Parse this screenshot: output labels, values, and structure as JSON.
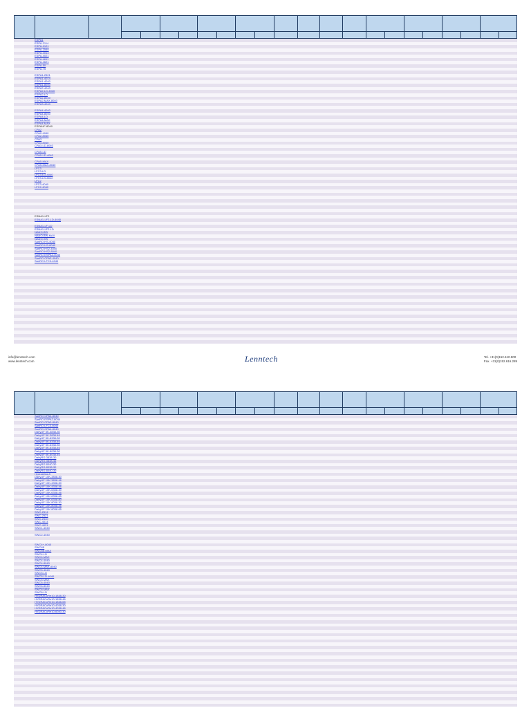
{
  "footer": {
    "email": "info@lenntech.com",
    "web": "www.lenntech.com",
    "logo": "Lenntech",
    "tel": "Tel. +31(0)152.610.900",
    "fax": "Fax. +31(0)152.616.289"
  },
  "page1_rows": [
    "ESPA1",
    "ESPA-2114",
    "ESPA-2121",
    "ESPA-2540",
    "ESPA-4014",
    "ESPA-4021",
    "ESPA-4611",
    "ESPA-4621",
    "ESPA-50",
    "ESPA-75",
    "",
    "ESPA1-2521",
    "ESPA1-4014",
    "ESPA1-4040",
    "ESPA1-8040",
    "ESPA2-4040",
    "ESPA2-LD-4040",
    "ESPA2-LD",
    "ESPA2-8040",
    "ESPA2-MAX-8040",
    "ESPA3-4040",
    "",
    "ESPA4-4040",
    "ESPA4-8040",
    "ESPA4-LD",
    "ESPA4-MAX",
    "ESPA4-MAX",
    "ESPAUF-8040",
    "CPA2",
    "CPA2-4040",
    "CPA2-8040",
    "CPA3",
    "CPA3-8040",
    "CPA3-LD-8040",
    "",
    "CPA5-LD",
    "CPA5-LD-4040",
    "",
    "CPA5-MAX",
    "CPA5-MAX-8040",
    "LFC3",
    "LFC3-LD",
    "LFC3-LD-4040",
    "LFC3-LD-8040",
    "LFC2",
    "LFC3-4040",
    "LFC2-4040",
    "",
    "",
    "",
    "",
    "",
    "",
    "",
    "",
    "ESNA1-LF2",
    "ESNA1-LF2-LD-4040",
    "",
    "ESNA1-LF-LD",
    "ESNA1-LF2-LD",
    "NANO-BW",
    "NANO-BW-MAX",
    "NANO-SW",
    "SanRO HS-4040",
    "SanRO HS-8040",
    "SanRO HS2-4040",
    "SanRO HS2-8040",
    "SanRO ESPA2-4040",
    "SanRO CPA3-4040",
    "SanRO LFC3-4040"
  ],
  "page1_plain": [
    "ESNA1-LF2",
    "ESPAUF-8040"
  ],
  "page2_rows": [
    "SanRO CPA4-8040",
    "SanRO ESPA2-8040",
    "SanRO CPA3-8040",
    "SanRO LFC3-8040",
    "SanRO CPA4-8040",
    "DairyUF 5K-3838-30",
    "DairyUF 5K-3838-46",
    "DairyUF 5K-6338-30",
    "DairyUF 5K-6338-46",
    "DairyUF 5K-6338-30",
    "DairyUF 5K-6338-46",
    "DairyUF 5K-8038-30",
    "DairyUF 5K-8038-46",
    "DairyRO-3838-30",
    "DairyRO-3838-46",
    "DairyRO-8040-30",
    "DairyRO-8038-30",
    "DairyRO-8040-30",
    "HydraUltra-8",
    "DairyUF 10K-3838-30",
    "DairyUF 10K-3838-46",
    "DairyUF 10K-4338-30",
    "DairyUF 10K-4338-46",
    "DairyUF 10K-6338-30",
    "DairyUF 10K-6338-46",
    "DairyUF 10K-6338-65",
    "DairyUF 10K-6338-80",
    "DairyUF 10K-8038-30",
    "DairyUF 10K-8038-46",
    "DairyUF 10K-8038-65",
    "SWC-2514",
    "SWC-2521",
    "SWC-2540",
    "SWC-4014",
    "SWC-4021",
    "SWC1-4040",
    "",
    "SWC2-4040",
    "",
    "",
    "SWC4+-8040",
    "SWC4B",
    "SWC4B-MAX",
    "SWC4-LD",
    "SWC4-MAX",
    "SWC4-4040",
    "SWC4-8040",
    "SWC4-MAX-8040",
    "SWC5-4040",
    "SWC5-LD",
    "SWC5-LD-4040",
    "SWC5-MAX",
    "SWC6-4040",
    "SWC6-8040",
    "SWC6-MAX",
    "SWC6-LD",
    "HYDRACoRe10-1838-30",
    "HYDRACoRe10-1838-46",
    "HYDRACoRe10-1838-65",
    "HYDRACoRe10-4038-30",
    "HYDRACoRe10-4038-46",
    "HYDRACoRe10-6040-30"
  ]
}
